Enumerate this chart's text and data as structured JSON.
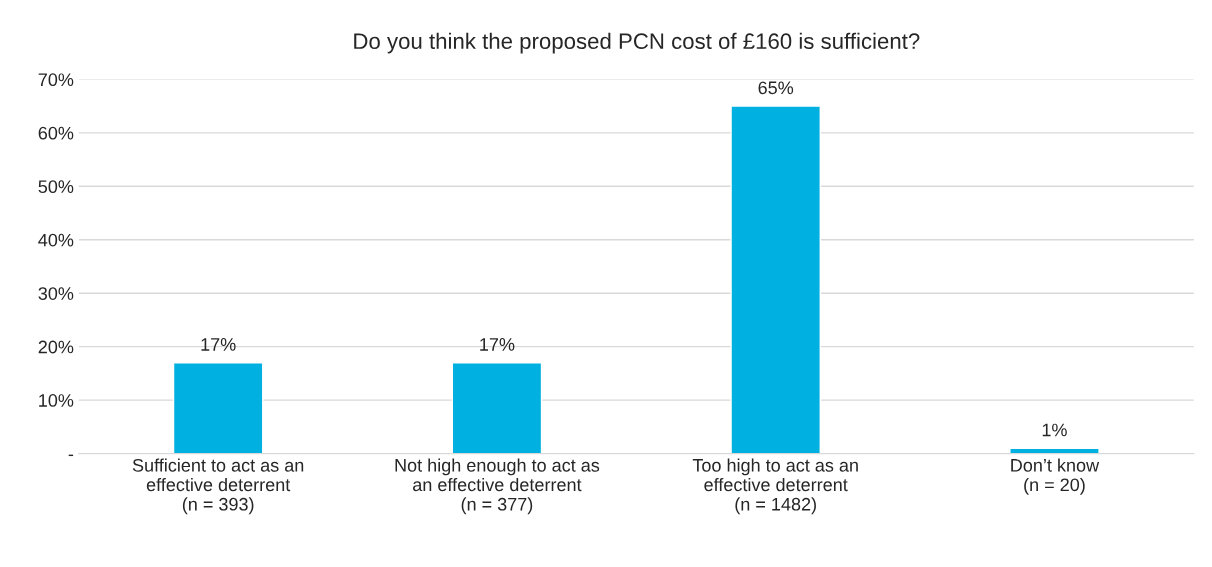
{
  "chart_data": {
    "type": "bar",
    "title": "Do you think the proposed PCN cost of £160 is sufficient?",
    "categories": [
      "Sufficient to act as an\neffective deterrent\n(n = 393)",
      "Not high enough to act as\nan effective deterrent\n(n = 377)",
      "Too high to act as an\neffective deterrent\n(n = 1482)",
      "Don’t know\n(n = 20)"
    ],
    "values": [
      17,
      17,
      65,
      1
    ],
    "value_labels": [
      "17%",
      "17%",
      "65%",
      "1%"
    ],
    "color": "#00b0e0",
    "ylim": [
      0,
      70
    ],
    "yticks": [
      {
        "value": 0,
        "label": "-"
      },
      {
        "value": 10,
        "label": "10%"
      },
      {
        "value": 20,
        "label": "20%"
      },
      {
        "value": 30,
        "label": "30%"
      },
      {
        "value": 40,
        "label": "40%"
      },
      {
        "value": 50,
        "label": "50%"
      },
      {
        "value": 60,
        "label": "60%"
      },
      {
        "value": 70,
        "label": "70%"
      }
    ],
    "grid": "y",
    "legend": false
  }
}
